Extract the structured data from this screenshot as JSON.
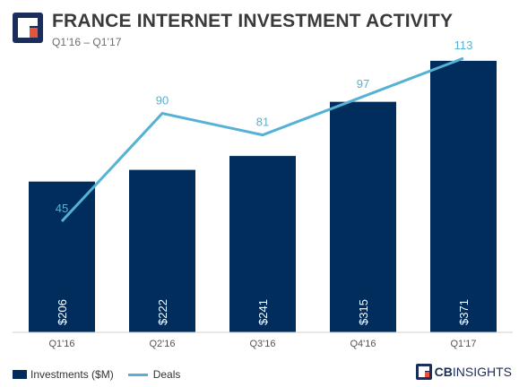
{
  "header": {
    "title": "FRANCE INTERNET INVESTMENT ACTIVITY",
    "subtitle": "Q1’16 – Q1’17"
  },
  "brand": {
    "part1": "CB",
    "part2": "INSIGHTS"
  },
  "colors": {
    "bar": "#002d5c",
    "line": "#55b2d4",
    "line_label": "#55b2d4",
    "bar_label": "#ffffff",
    "logo_dark": "#1b2d5b",
    "logo_accent": "#e8533f"
  },
  "chart_data": {
    "type": "bar",
    "title": "FRANCE INTERNET INVESTMENT ACTIVITY",
    "subtitle": "Q1’16 – Q1’17",
    "categories": [
      "Q1'16",
      "Q2'16",
      "Q3'16",
      "Q4'16",
      "Q1'17"
    ],
    "series": [
      {
        "name": "Investments ($M)",
        "type": "bar",
        "values": [
          206,
          222,
          241,
          315,
          371
        ],
        "labels": [
          "$206",
          "$222",
          "$241",
          "$315",
          "$371"
        ]
      },
      {
        "name": "Deals",
        "type": "line",
        "values": [
          45,
          90,
          81,
          97,
          113
        ],
        "labels": [
          "45",
          "90",
          "81",
          "97",
          "113"
        ]
      }
    ],
    "legend": "bottom-left",
    "grid": false
  }
}
